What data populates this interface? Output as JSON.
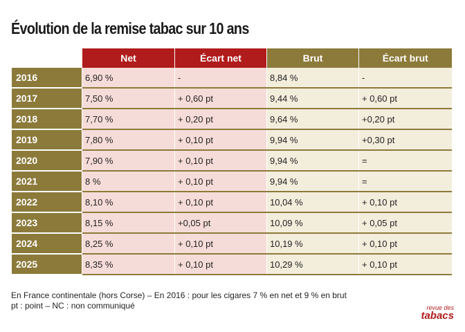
{
  "header": {
    "title": "Évolution de la remise tabac sur 10 ans"
  },
  "table": {
    "columns": [
      "Net",
      "Écart net",
      "Brut",
      "Écart brut"
    ],
    "rows": [
      [
        "2016",
        "6,90 %",
        "-",
        "8,84 %",
        "-"
      ],
      [
        "2017",
        "7,50 %",
        "+ 0,60 pt",
        "9,44 %",
        "+ 0,60 pt"
      ],
      [
        "2018",
        "7,70 %",
        "+ 0,20 pt",
        "9,64 %",
        "+0,20 pt"
      ],
      [
        "2019",
        "7,80 %",
        "+ 0,10 pt",
        "9,94 %",
        "+0,30 pt"
      ],
      [
        "2020",
        "7,90 %",
        "+ 0,10 pt",
        "9,94 %",
        "="
      ],
      [
        "2021",
        "8 %",
        "+ 0,10 pt",
        "9,94 %",
        "="
      ],
      [
        "2022",
        "8,10 %",
        "+ 0,10 pt",
        "10,04 %",
        "+ 0,10 pt"
      ],
      [
        "2023",
        "8,15 %",
        "+0,05 pt",
        "10,09 %",
        "+ 0,05 pt"
      ],
      [
        "2024",
        "8,25 %",
        "+ 0,10 pt",
        "10,19 %",
        "+ 0,10 pt"
      ],
      [
        "2025",
        "8,35 %",
        "+ 0,10 pt",
        "10,29 %",
        "+ 0,10 pt"
      ]
    ]
  },
  "footer": {
    "notes": [
      "En France continentale (hors Corse) – En 2016 : pour les cigares 7 % en net et 9 % en brut",
      "pt : point – NC : non communiqué"
    ]
  },
  "logo": {
    "top": "revue des",
    "bottom": "tabacs"
  }
}
